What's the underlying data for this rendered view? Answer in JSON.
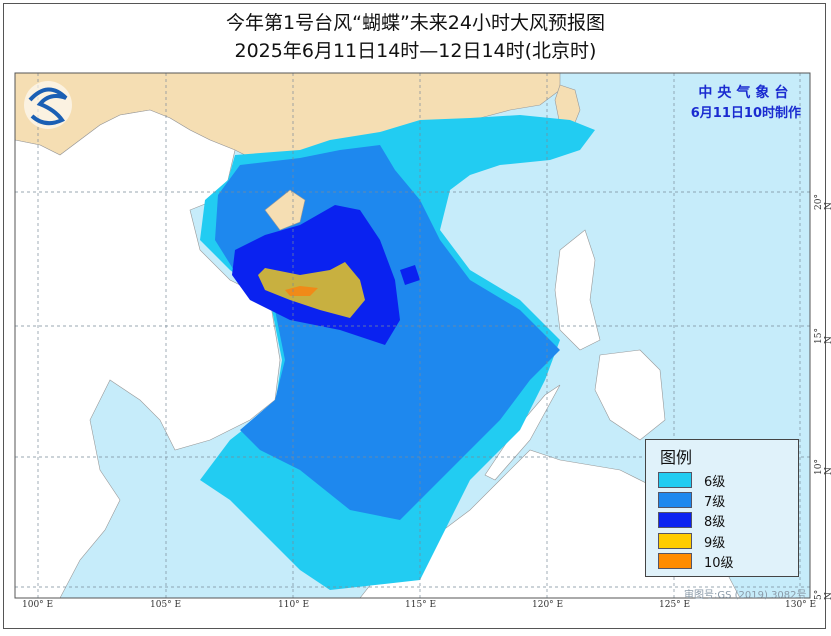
{
  "title": {
    "line1": "今年第1号台风“蝴蝶”未来24小时大风预报图",
    "line2": "2025年6月11日14时—12日14时(北京时)"
  },
  "issuer": {
    "name": "中央气象台",
    "made": "6月11日10时制作",
    "logo": "CMA-logo"
  },
  "legend": {
    "title": "图例",
    "items": [
      {
        "label": "6级",
        "color": "#22ccf2"
      },
      {
        "label": "7级",
        "color": "#1e88ee"
      },
      {
        "label": "8级",
        "color": "#0a22f0"
      },
      {
        "label": "9级",
        "color": "#ffcc00"
      },
      {
        "label": "10级",
        "color": "#ff8c00"
      }
    ]
  },
  "axes": {
    "lon_labels": [
      "100° E",
      "105° E",
      "110° E",
      "115° E",
      "120° E",
      "125° E",
      "130° E"
    ],
    "lat_labels": [
      "20° N",
      "15° N",
      "10° N",
      "5° N"
    ]
  },
  "approval": "审图号:GS (2019) 3082号",
  "colors": {
    "sea": "#c6ecfa",
    "china_land": "#f5deb3",
    "other_land": "#ffffff"
  }
}
